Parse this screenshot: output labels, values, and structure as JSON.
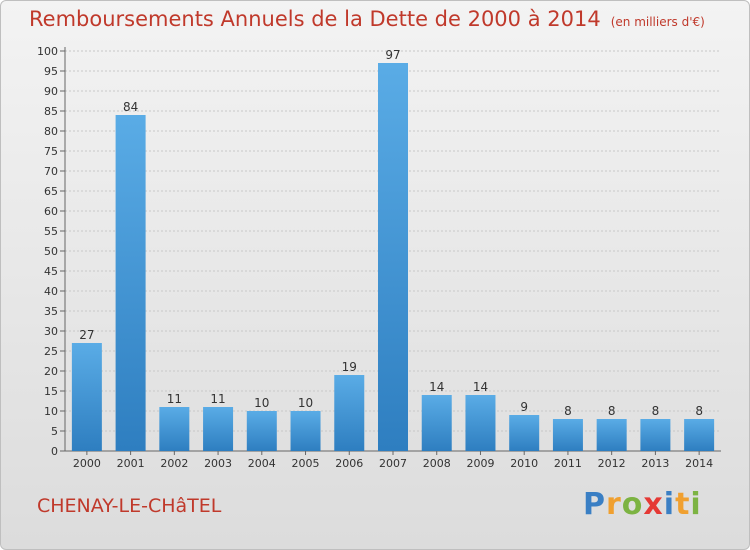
{
  "title": "Remboursements Annuels de la Dette de 2000 à 2014",
  "subtitle": "(en milliers d'€)",
  "commune": "CHENAY-LE-CHâTEL",
  "brand": {
    "letters": [
      "P",
      "r",
      "o",
      "x",
      "i",
      "t",
      "i"
    ],
    "colors": [
      "#3a7fc4",
      "#f0a030",
      "#7cb342",
      "#e53935",
      "#3a7fc4",
      "#f0a030",
      "#7cb342"
    ]
  },
  "colors": {
    "title": "#c0392b",
    "bar_light": "#5aace6",
    "bar_dark": "#2e7ec0"
  },
  "chart_data": {
    "type": "bar",
    "categories": [
      "2000",
      "2001",
      "2002",
      "2003",
      "2004",
      "2005",
      "2006",
      "2007",
      "2008",
      "2009",
      "2010",
      "2011",
      "2012",
      "2013",
      "2014"
    ],
    "values": [
      27,
      84,
      11,
      11,
      10,
      10,
      19,
      97,
      14,
      14,
      9,
      8,
      8,
      8,
      8
    ],
    "ylim": [
      0,
      100
    ],
    "yticks": [
      0,
      5,
      10,
      15,
      20,
      25,
      30,
      35,
      40,
      45,
      50,
      55,
      60,
      65,
      70,
      75,
      80,
      85,
      90,
      95,
      100
    ],
    "grid": true
  }
}
